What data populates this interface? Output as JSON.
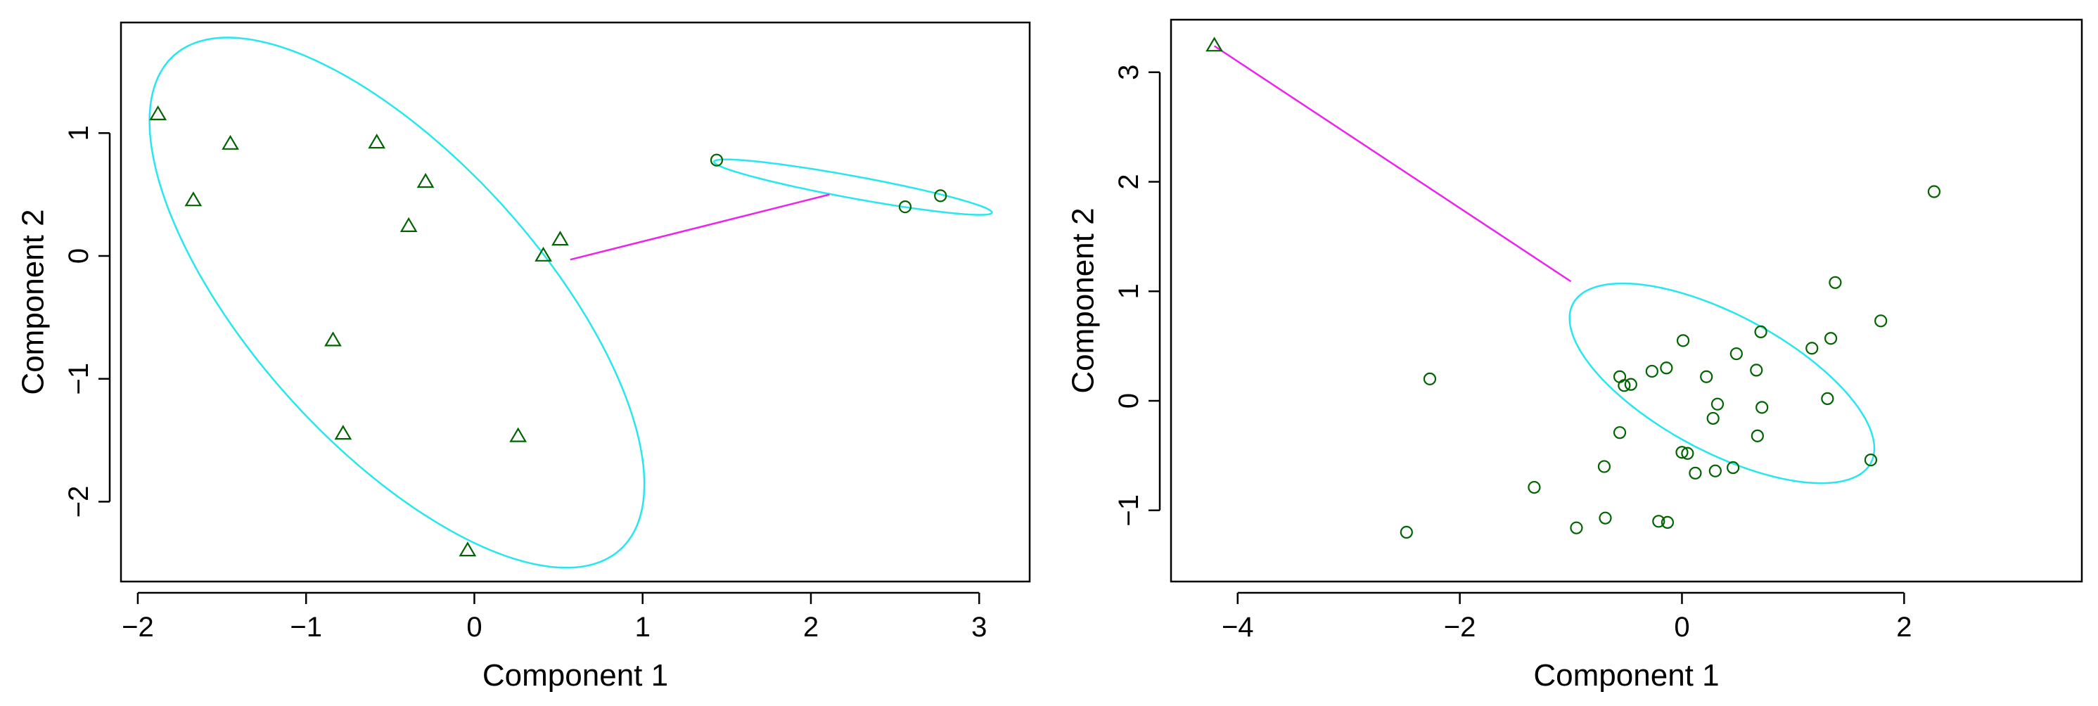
{
  "colors": {
    "ellipse": "#26E7EE",
    "connector": "#EE22EE",
    "points": "#006400",
    "frame": "#000000",
    "background": "#FFFFFF"
  },
  "chart_data": [
    {
      "type": "scatter",
      "title": "",
      "xlabel": "Component 1",
      "ylabel": "Component 2",
      "xlim": [
        -2.1,
        3.3
      ],
      "ylim": [
        -2.65,
        1.9
      ],
      "x_ticks": [
        -2,
        -1,
        0,
        1,
        2,
        3
      ],
      "y_ticks": [
        -2,
        -1,
        0,
        1
      ],
      "x_tick_labels": [
        "−2",
        "−1",
        "0",
        "1",
        "2",
        "3"
      ],
      "y_tick_labels": [
        "−2",
        "−1",
        "0",
        "1"
      ],
      "grid": false,
      "legend": "none",
      "series": [
        {
          "marker": "triangle",
          "points": [
            [
              -1.88,
              1.15
            ],
            [
              -1.45,
              0.91
            ],
            [
              -1.67,
              0.45
            ],
            [
              -0.58,
              0.92
            ],
            [
              -0.29,
              0.6
            ],
            [
              -0.39,
              0.24
            ],
            [
              0.41,
              0.0
            ],
            [
              0.51,
              0.13
            ],
            [
              -0.84,
              -0.69
            ],
            [
              -0.78,
              -1.45
            ],
            [
              0.26,
              -1.47
            ],
            [
              -0.04,
              -2.4
            ]
          ]
        },
        {
          "marker": "circle",
          "points": [
            [
              1.44,
              0.78
            ],
            [
              2.56,
              0.4
            ],
            [
              2.77,
              0.49
            ]
          ]
        }
      ],
      "ellipses": [
        {
          "center": [
            -0.46,
            -0.38
          ],
          "points": [
            [
              -1.25,
              1.74
            ],
            [
              0.33,
              -2.5
            ],
            [
              -1.7,
              0.02
            ],
            [
              0.77,
              -0.77
            ]
          ]
        },
        {
          "center": [
            2.25,
            0.56
          ],
          "points": [
            [
              1.44,
              0.78
            ],
            [
              3.06,
              0.35
            ],
            [
              2.09,
              0.51
            ],
            [
              2.41,
              0.61
            ]
          ]
        }
      ],
      "connector": [
        [
          0.57,
          -0.03
        ],
        [
          2.11,
          0.5
        ]
      ]
    },
    {
      "type": "scatter",
      "title": "",
      "xlabel": "Component 1",
      "ylabel": "Component 2",
      "xlim": [
        -4.6,
        3.6
      ],
      "ylim": [
        -1.65,
        3.48
      ],
      "x_ticks": [
        -4,
        -2,
        0,
        2
      ],
      "y_ticks": [
        -1,
        0,
        1,
        2,
        3
      ],
      "x_tick_labels": [
        "−4",
        "−2",
        "0",
        "2"
      ],
      "y_tick_labels": [
        "−1",
        "0",
        "1",
        "2",
        "3"
      ],
      "grid": false,
      "legend": "none",
      "series": [
        {
          "marker": "triangle",
          "points": [
            [
              -4.21,
              3.24
            ]
          ]
        },
        {
          "marker": "circle",
          "points": [
            [
              2.27,
              1.91
            ],
            [
              -2.27,
              0.2
            ],
            [
              1.7,
              -0.54
            ],
            [
              -2.48,
              -1.2
            ],
            [
              1.38,
              1.08
            ],
            [
              1.79,
              0.73
            ],
            [
              0.71,
              0.63
            ],
            [
              1.34,
              0.57
            ],
            [
              1.17,
              0.48
            ],
            [
              0.49,
              0.43
            ],
            [
              0.01,
              0.55
            ],
            [
              -0.14,
              0.3
            ],
            [
              -0.27,
              0.27
            ],
            [
              -0.56,
              0.22
            ],
            [
              -0.52,
              0.14
            ],
            [
              -0.46,
              0.15
            ],
            [
              0.22,
              0.22
            ],
            [
              0.67,
              0.28
            ],
            [
              0.32,
              -0.03
            ],
            [
              0.72,
              -0.06
            ],
            [
              1.31,
              0.02
            ],
            [
              0.28,
              -0.16
            ],
            [
              -0.56,
              -0.29
            ],
            [
              0.68,
              -0.32
            ],
            [
              0.0,
              -0.47
            ],
            [
              0.05,
              -0.48
            ],
            [
              -0.7,
              -0.6
            ],
            [
              0.3,
              -0.64
            ],
            [
              0.46,
              -0.61
            ],
            [
              0.12,
              -0.66
            ],
            [
              -1.33,
              -0.79
            ],
            [
              -0.69,
              -1.07
            ],
            [
              -0.21,
              -1.1
            ],
            [
              -0.13,
              -1.11
            ],
            [
              -0.95,
              -1.16
            ]
          ]
        }
      ],
      "ellipses": [
        {
          "center": [
            0.36,
            0.16
          ],
          "points": [
            [
              -0.6,
              1.07
            ],
            [
              3.2,
              0.86
            ],
            [
              1.34,
              0.22
            ],
            [
              0.12,
              -0.62
            ]
          ]
        }
      ],
      "connector": [
        [
          -4.21,
          3.24
        ],
        [
          -1.0,
          1.09
        ]
      ]
    }
  ]
}
